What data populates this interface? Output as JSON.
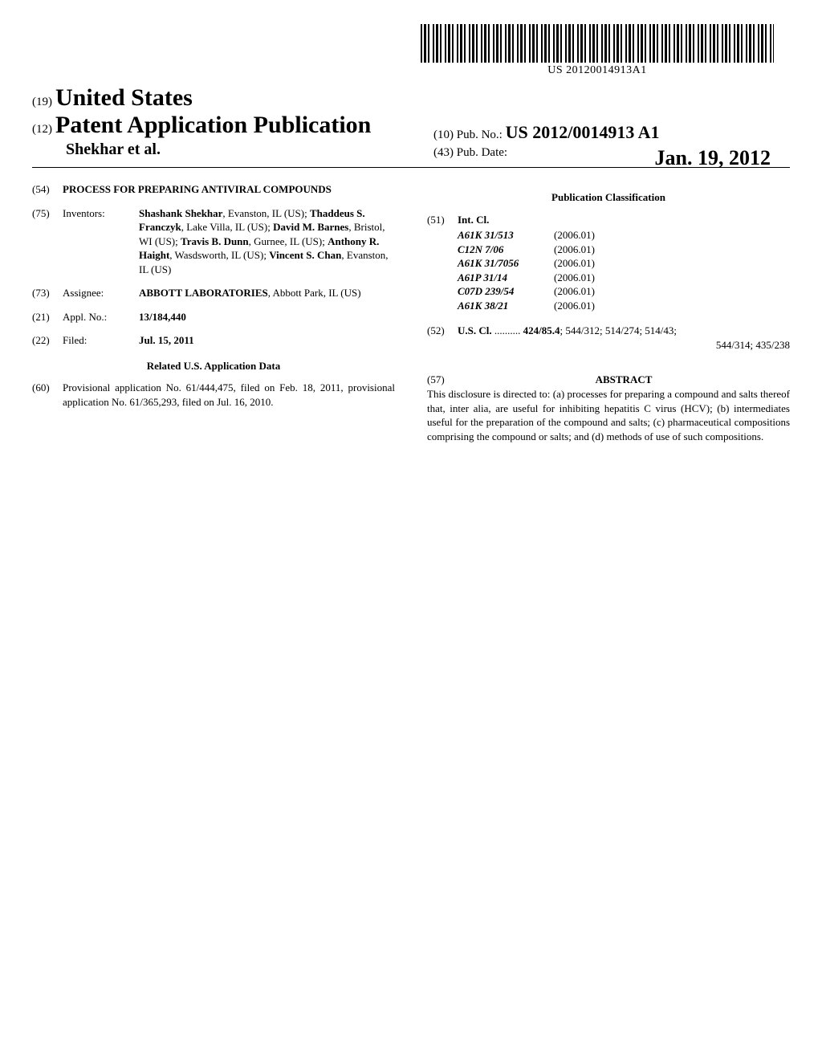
{
  "barcode_number": "US 20120014913A1",
  "header": {
    "code19": "(19)",
    "country": "United States",
    "code12": "(12)",
    "pub_type": "Patent Application Publication",
    "authors_short": "Shekhar et al.",
    "code10": "(10)",
    "pub_no_label": "Pub. No.:",
    "pub_no": "US 2012/0014913 A1",
    "code43": "(43)",
    "pub_date_label": "Pub. Date:",
    "pub_date": "Jan. 19, 2012"
  },
  "left_col": {
    "title": {
      "num": "(54)",
      "value": "PROCESS FOR PREPARING ANTIVIRAL COMPOUNDS"
    },
    "inventors": {
      "num": "(75)",
      "label": "Inventors:",
      "text_parts": [
        {
          "name": "Shashank Shekhar",
          "loc": ", Evanston, IL (US); "
        },
        {
          "name": "Thaddeus S. Franczyk",
          "loc": ", Lake Villa, IL (US); "
        },
        {
          "name": "David M. Barnes",
          "loc": ", Bristol, WI (US); "
        },
        {
          "name": "Travis B. Dunn",
          "loc": ", Gurnee, IL (US); "
        },
        {
          "name": "Anthony R. Haight",
          "loc": ", Wasdsworth, IL (US); "
        },
        {
          "name": "Vincent S. Chan",
          "loc": ", Evanston, IL (US)"
        }
      ]
    },
    "assignee": {
      "num": "(73)",
      "label": "Assignee:",
      "name": "ABBOTT LABORATORIES",
      "loc": ", Abbott Park, IL (US)"
    },
    "appl_no": {
      "num": "(21)",
      "label": "Appl. No.:",
      "value": "13/184,440"
    },
    "filed": {
      "num": "(22)",
      "label": "Filed:",
      "value": "Jul. 15, 2011"
    },
    "related_heading": "Related U.S. Application Data",
    "provisional": {
      "num": "(60)",
      "text": "Provisional application No. 61/444,475, filed on Feb. 18, 2011, provisional application No. 61/365,293, filed on Jul. 16, 2010."
    }
  },
  "right_col": {
    "pub_class_heading": "Publication Classification",
    "intcl": {
      "num": "(51)",
      "label": "Int. Cl.",
      "rows": [
        {
          "code": "A61K 31/513",
          "year": "(2006.01)"
        },
        {
          "code": "C12N 7/06",
          "year": "(2006.01)"
        },
        {
          "code": "A61K 31/7056",
          "year": "(2006.01)"
        },
        {
          "code": "A61P 31/14",
          "year": "(2006.01)"
        },
        {
          "code": "C07D 239/54",
          "year": "(2006.01)"
        },
        {
          "code": "A61K 38/21",
          "year": "(2006.01)"
        }
      ]
    },
    "uscl": {
      "num": "(52)",
      "label": "U.S. Cl.",
      "dots": " .......... ",
      "value_line1": "424/85.4; 544/312; 514/274; 514/43;",
      "value_line2": "544/314; 435/238"
    },
    "abstract": {
      "num": "(57)",
      "heading": "ABSTRACT",
      "text": "This disclosure is directed to: (a) processes for preparing a compound and salts thereof that, inter alia, are useful for inhibiting hepatitis C virus (HCV); (b) intermediates useful for the preparation of the compound and salts; (c) pharmaceutical compositions comprising the compound or salts; and (d) methods of use of such compositions."
    }
  }
}
